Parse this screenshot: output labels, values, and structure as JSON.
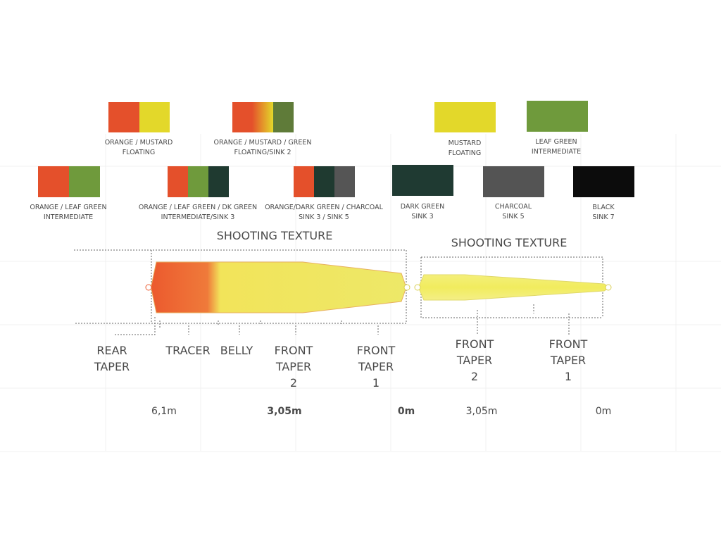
{
  "swatches": [
    {
      "label": [
        "ORANGE / MUSTARD",
        "FLOATING"
      ]
    },
    {
      "label": [
        "ORANGE / MUSTARD / GREEN",
        "FLOATING/SINK 2"
      ]
    },
    {
      "label": [
        "MUSTARD",
        "FLOATING"
      ]
    },
    {
      "label": [
        "LEAF GREEN",
        "INTERMEDIATE"
      ]
    },
    {
      "label": [
        "ORANGE / LEAF GREEN",
        "INTERMEDIATE"
      ]
    },
    {
      "label": [
        "ORANGE / LEAF GREEN / DK GREEN",
        "INTERMEDIATE/SINK 3"
      ]
    },
    {
      "label": [
        "ORANGE/DARK GREEN / CHARCOAL",
        "SINK 3 / SINK 5"
      ]
    },
    {
      "label": [
        "DARK GREEN",
        "SINK 3"
      ]
    },
    {
      "label": [
        "CHARCOAL",
        "SINK 5"
      ]
    },
    {
      "label": [
        "BLACK",
        "SINK 7"
      ]
    }
  ],
  "line_1": {
    "title": "SHOOTING TEXTURE",
    "parts": [
      {
        "label": [
          "REAR",
          "TAPER"
        ]
      },
      {
        "label": [
          "TRACER"
        ]
      },
      {
        "label": [
          "BELLY"
        ]
      },
      {
        "label": [
          "FRONT",
          "TAPER",
          "2"
        ]
      },
      {
        "label": [
          "FRONT",
          "TAPER",
          "1"
        ]
      }
    ],
    "distances": [
      "6,1m",
      "3,05m",
      "0m"
    ]
  },
  "line_2": {
    "title": "SHOOTING TEXTURE",
    "parts": [
      {
        "label": [
          "FRONT",
          "TAPER",
          "2"
        ]
      },
      {
        "label": [
          "FRONT",
          "TAPER",
          "1"
        ]
      }
    ],
    "distances": [
      "3,05m",
      "0m"
    ]
  }
}
